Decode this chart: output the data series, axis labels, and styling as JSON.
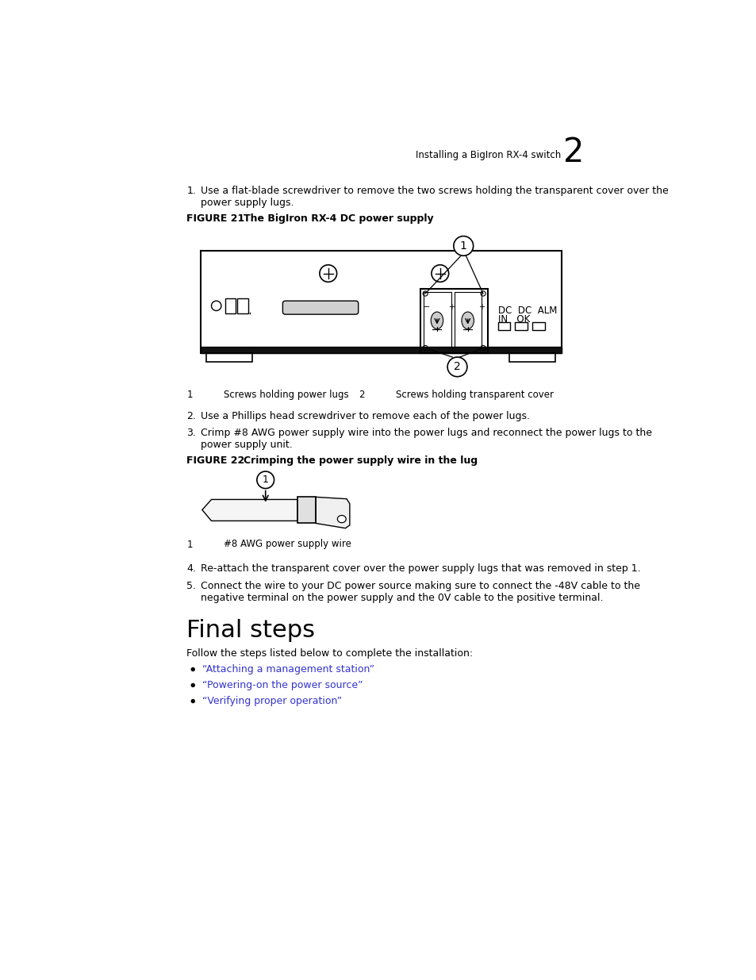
{
  "bg_color": "#ffffff",
  "header_text": "Installing a BigIron RX-4 switch",
  "header_chapter": "2",
  "step1_text": "Use a flat-blade screwdriver to remove the two screws holding the transparent cover over the\npower supply lugs.",
  "fig21_label": "FIGURE 21",
  "fig21_title": "The BigIron RX-4 DC power supply",
  "caption1_num": "1",
  "caption1_text": "Screws holding power lugs",
  "caption2_num": "2",
  "caption2_text": "Screws holding transparent cover",
  "step2_text": "Use a Phillips head screwdriver to remove each of the power lugs.",
  "step3_text": "Crimp #8 AWG power supply wire into the power lugs and reconnect the power lugs to the\npower supply unit.",
  "fig22_label": "FIGURE 22",
  "fig22_title": "Crimping the power supply wire in the lug",
  "fig22_caption1_num": "1",
  "fig22_caption1_text": "#8 AWG power supply wire",
  "step4_text": "Re-attach the transparent cover over the power supply lugs that was removed in step 1.",
  "step5_text": "Connect the wire to your DC power source making sure to connect the -48V cable to the\nnegative terminal on the power supply and the 0V cable to the positive terminal.",
  "final_steps_title": "Final steps",
  "final_steps_intro": "Follow the steps listed below to complete the installation:",
  "bullet1": "“Attaching a management station”",
  "bullet2": "“Powering-on the power source”",
  "bullet3": "“Verifying proper operation”",
  "link_color": "#3333cc"
}
